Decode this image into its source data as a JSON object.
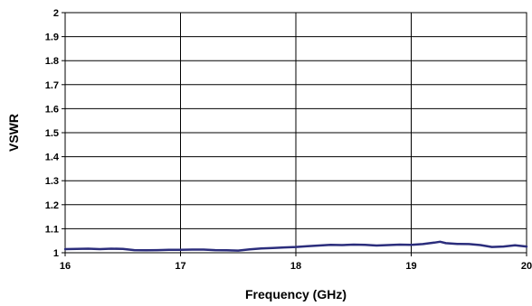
{
  "chart_data": {
    "type": "line",
    "xlabel": "Frequency (GHz)",
    "ylabel": "VSWR",
    "xlim": [
      16,
      20
    ],
    "ylim": [
      1,
      2
    ],
    "x_ticks": [
      "16",
      "17",
      "18",
      "19",
      "20"
    ],
    "y_ticks": [
      "1",
      "1.1",
      "1.2",
      "1.3",
      "1.4",
      "1.5",
      "1.6",
      "1.7",
      "1.8",
      "1.9",
      "2"
    ],
    "grid": true,
    "legend": "none",
    "line_color": "#2b2d7c",
    "series": [
      {
        "x": [
          16.0,
          16.1,
          16.2,
          16.3,
          16.4,
          16.5,
          16.6,
          16.7,
          16.8,
          16.9,
          17.0,
          17.1,
          17.2,
          17.3,
          17.4,
          17.5,
          17.6,
          17.7,
          17.8,
          17.9,
          18.0,
          18.1,
          18.2,
          18.3,
          18.4,
          18.5,
          18.6,
          18.7,
          18.8,
          18.9,
          19.0,
          19.1,
          19.2,
          19.25,
          19.3,
          19.4,
          19.5,
          19.6,
          19.7,
          19.8,
          19.9,
          20.0
        ],
        "y": [
          1.015,
          1.016,
          1.017,
          1.015,
          1.017,
          1.016,
          1.011,
          1.01,
          1.011,
          1.012,
          1.012,
          1.013,
          1.013,
          1.011,
          1.01,
          1.009,
          1.014,
          1.018,
          1.02,
          1.022,
          1.024,
          1.027,
          1.03,
          1.033,
          1.032,
          1.034,
          1.033,
          1.03,
          1.032,
          1.034,
          1.033,
          1.036,
          1.042,
          1.046,
          1.04,
          1.037,
          1.036,
          1.032,
          1.024,
          1.026,
          1.031,
          1.026
        ]
      }
    ]
  }
}
